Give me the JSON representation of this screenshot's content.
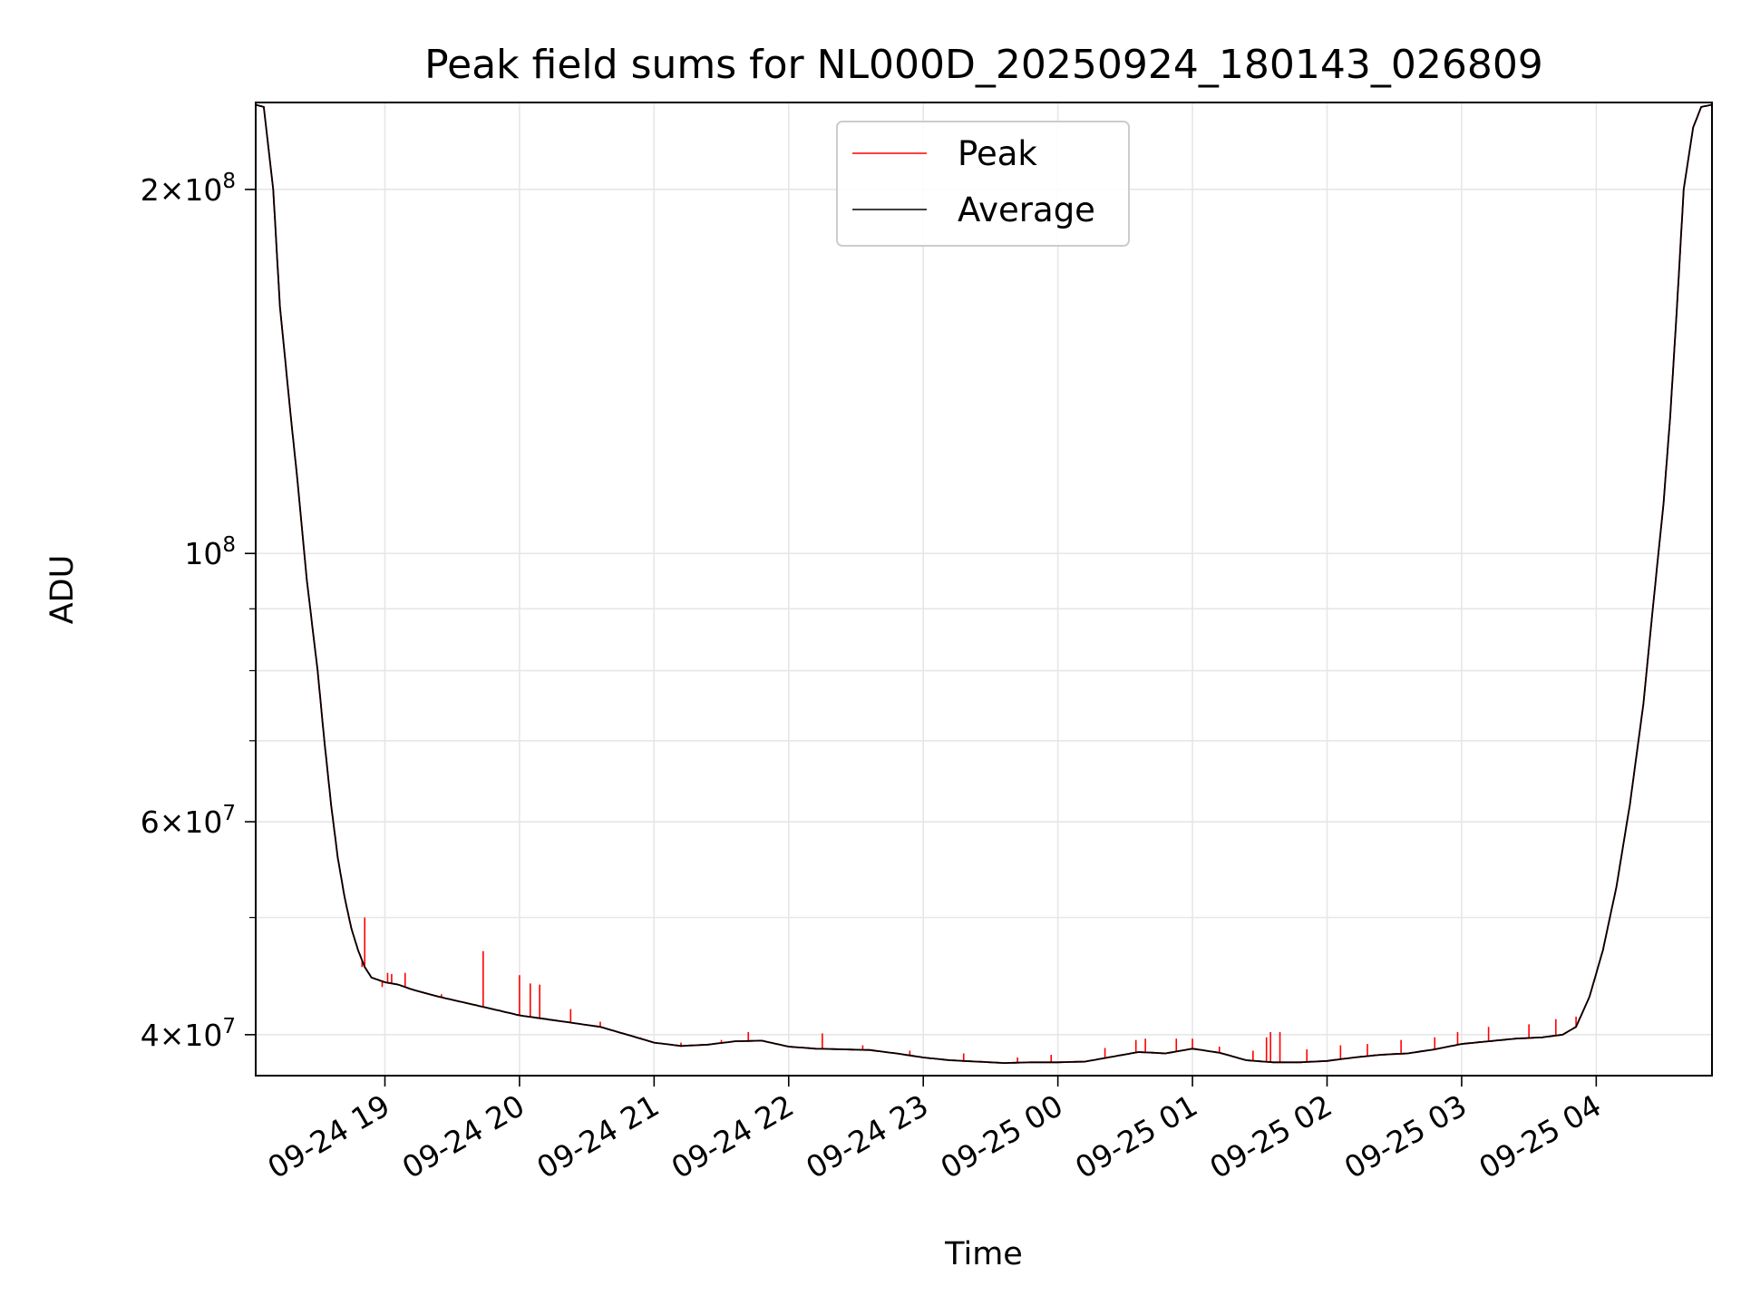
{
  "chart_data": {
    "type": "line",
    "title": "Peak field sums for NL000D_20250924_180143_026809",
    "xlabel": "Time",
    "ylabel": "ADU",
    "yscale": "log",
    "ylim": [
      37000000,
      236000000
    ],
    "xlim_hours": [
      18.04,
      4.86
    ],
    "grid": true,
    "legend_position": "upper center",
    "x_ticks": [
      {
        "label": "09-24 19",
        "hour": 19
      },
      {
        "label": "09-24 20",
        "hour": 20
      },
      {
        "label": "09-24 21",
        "hour": 21
      },
      {
        "label": "09-24 22",
        "hour": 22
      },
      {
        "label": "09-24 23",
        "hour": 23
      },
      {
        "label": "09-25 00",
        "hour": 24
      },
      {
        "label": "09-25 01",
        "hour": 25
      },
      {
        "label": "09-25 02",
        "hour": 26
      },
      {
        "label": "09-25 03",
        "hour": 27
      },
      {
        "label": "09-25 04",
        "hour": 28
      }
    ],
    "y_major_ticks": [
      {
        "label_base": "2",
        "label_exp": "8",
        "value": 200000000
      },
      {
        "label_base": "",
        "label_exp": "8",
        "value": 100000000
      },
      {
        "label_base": "6",
        "label_exp": "7",
        "value": 60000000
      },
      {
        "label_base": "4",
        "label_exp": "7",
        "value": 40000000
      }
    ],
    "y_minor_ticks": [
      50000000,
      70000000,
      80000000,
      90000000
    ],
    "series": [
      {
        "name": "Peak",
        "color": "#ff0000",
        "spikes": [
          [
            18.83,
            45500000
          ],
          [
            18.85,
            50000000
          ],
          [
            18.98,
            43800000
          ],
          [
            19.02,
            45000000
          ],
          [
            19.05,
            44900000
          ],
          [
            19.15,
            45000000
          ],
          [
            19.25,
            43500000
          ],
          [
            19.42,
            43200000
          ],
          [
            19.73,
            46900000
          ],
          [
            20.0,
            44800000
          ],
          [
            20.08,
            44100000
          ],
          [
            20.15,
            44000000
          ],
          [
            20.38,
            42000000
          ],
          [
            20.6,
            41000000
          ],
          [
            20.9,
            39800000
          ],
          [
            21.2,
            39400000
          ],
          [
            21.5,
            39600000
          ],
          [
            21.7,
            40200000
          ],
          [
            22.0,
            39100000
          ],
          [
            22.25,
            40100000
          ],
          [
            22.55,
            39200000
          ],
          [
            22.9,
            38800000
          ],
          [
            23.3,
            38600000
          ],
          [
            23.7,
            38300000
          ],
          [
            23.95,
            38500000
          ],
          [
            24.35,
            39000000
          ],
          [
            24.58,
            39600000
          ],
          [
            24.65,
            39700000
          ],
          [
            24.88,
            39700000
          ],
          [
            25.0,
            39700000
          ],
          [
            25.2,
            39100000
          ],
          [
            25.45,
            38800000
          ],
          [
            25.55,
            39800000
          ],
          [
            25.58,
            40200000
          ],
          [
            25.65,
            40200000
          ],
          [
            25.85,
            38900000
          ],
          [
            26.1,
            39200000
          ],
          [
            26.3,
            39300000
          ],
          [
            26.55,
            39600000
          ],
          [
            26.8,
            39800000
          ],
          [
            26.97,
            40200000
          ],
          [
            27.2,
            40600000
          ],
          [
            27.5,
            40800000
          ],
          [
            27.7,
            41200000
          ],
          [
            27.85,
            41400000
          ]
        ]
      },
      {
        "name": "Average",
        "color": "#000000",
        "points": [
          [
            18.04,
            235000000
          ],
          [
            18.1,
            234000000
          ],
          [
            18.17,
            200000000
          ],
          [
            18.22,
            160000000
          ],
          [
            18.3,
            130000000
          ],
          [
            18.35,
            115000000
          ],
          [
            18.42,
            95000000
          ],
          [
            18.5,
            80000000
          ],
          [
            18.55,
            70000000
          ],
          [
            18.6,
            62000000
          ],
          [
            18.65,
            56000000
          ],
          [
            18.7,
            52000000
          ],
          [
            18.75,
            49000000
          ],
          [
            18.8,
            47000000
          ],
          [
            18.85,
            45500000
          ],
          [
            18.9,
            44600000
          ],
          [
            19.0,
            44200000
          ],
          [
            19.1,
            44000000
          ],
          [
            19.2,
            43600000
          ],
          [
            19.4,
            43000000
          ],
          [
            19.6,
            42500000
          ],
          [
            19.8,
            42000000
          ],
          [
            20.0,
            41500000
          ],
          [
            20.2,
            41200000
          ],
          [
            20.4,
            40900000
          ],
          [
            20.6,
            40600000
          ],
          [
            20.8,
            40000000
          ],
          [
            21.0,
            39400000
          ],
          [
            21.2,
            39150000
          ],
          [
            21.4,
            39250000
          ],
          [
            21.6,
            39500000
          ],
          [
            21.8,
            39550000
          ],
          [
            22.0,
            39100000
          ],
          [
            22.2,
            38950000
          ],
          [
            22.4,
            38900000
          ],
          [
            22.6,
            38850000
          ],
          [
            22.8,
            38600000
          ],
          [
            23.0,
            38300000
          ],
          [
            23.2,
            38100000
          ],
          [
            23.4,
            38000000
          ],
          [
            23.6,
            37900000
          ],
          [
            23.8,
            37950000
          ],
          [
            24.0,
            37950000
          ],
          [
            24.2,
            38000000
          ],
          [
            24.4,
            38350000
          ],
          [
            24.6,
            38700000
          ],
          [
            24.8,
            38600000
          ],
          [
            25.0,
            38950000
          ],
          [
            25.2,
            38650000
          ],
          [
            25.4,
            38100000
          ],
          [
            25.6,
            37950000
          ],
          [
            25.8,
            37950000
          ],
          [
            26.0,
            38050000
          ],
          [
            26.2,
            38300000
          ],
          [
            26.4,
            38500000
          ],
          [
            26.6,
            38600000
          ],
          [
            26.8,
            38900000
          ],
          [
            27.0,
            39300000
          ],
          [
            27.2,
            39500000
          ],
          [
            27.4,
            39700000
          ],
          [
            27.6,
            39800000
          ],
          [
            27.75,
            40000000
          ],
          [
            27.85,
            40600000
          ],
          [
            27.95,
            43000000
          ],
          [
            28.05,
            47000000
          ],
          [
            28.15,
            53000000
          ],
          [
            28.25,
            62000000
          ],
          [
            28.35,
            75000000
          ],
          [
            28.42,
            90000000
          ],
          [
            28.5,
            110000000
          ],
          [
            28.55,
            130000000
          ],
          [
            28.6,
            160000000
          ],
          [
            28.65,
            200000000
          ],
          [
            28.72,
            225000000
          ],
          [
            28.78,
            234000000
          ],
          [
            28.86,
            235000000
          ]
        ]
      }
    ]
  }
}
